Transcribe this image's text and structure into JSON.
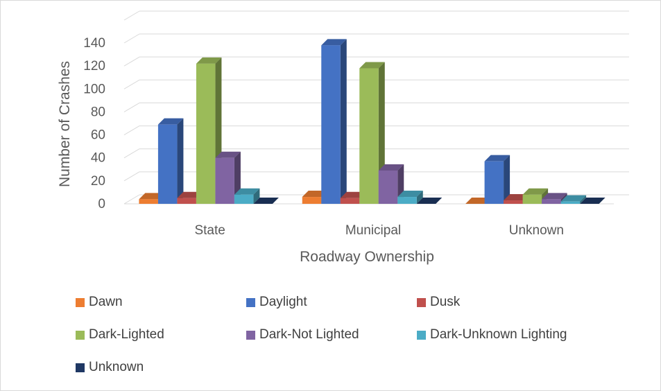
{
  "chart_data": {
    "type": "bar",
    "title": "",
    "xlabel": "Roadway Ownership",
    "ylabel": "Number of Crashes",
    "categories": [
      "State",
      "Municipal",
      "Unknown"
    ],
    "ylim": [
      0,
      140
    ],
    "yticks": [
      0,
      20,
      40,
      60,
      80,
      100,
      120,
      140
    ],
    "grid": true,
    "legend_position": "bottom",
    "series": [
      {
        "name": "Dawn",
        "color": "#ed7d31",
        "values": [
          4,
          6,
          0
        ]
      },
      {
        "name": "Daylight",
        "color": "#4472c4",
        "values": [
          69,
          138,
          37
        ]
      },
      {
        "name": "Dusk",
        "color": "#c0504d",
        "values": [
          5,
          5,
          3
        ]
      },
      {
        "name": "Dark-Lighted",
        "color": "#9bbb59",
        "values": [
          122,
          118,
          8
        ]
      },
      {
        "name": "Dark-Not Lighted",
        "color": "#8064a2",
        "values": [
          40,
          29,
          4
        ]
      },
      {
        "name": "Dark-Unknown Lighting",
        "color": "#4bacc6",
        "values": [
          8,
          6,
          2
        ]
      },
      {
        "name": "Unknown",
        "color": "#1f3864",
        "values": [
          0,
          0,
          0
        ]
      }
    ]
  }
}
